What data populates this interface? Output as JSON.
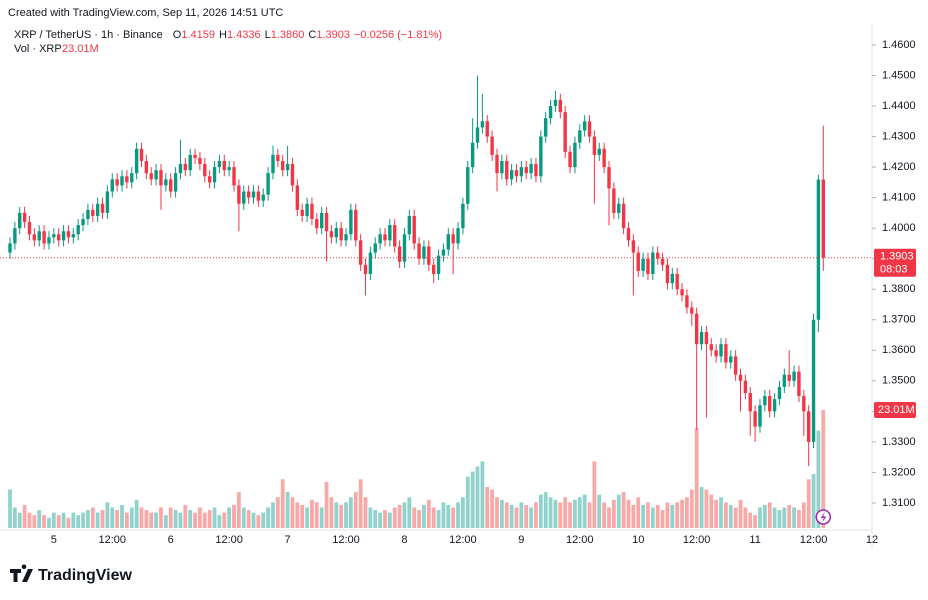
{
  "header": {
    "created": "Created with TradingView.com, Sep 11, 2026 14:51 UTC",
    "symbol": "XRP / TetherUS · 1h · Binance",
    "ohlc": [
      {
        "key": "O",
        "value": "1.4159"
      },
      {
        "key": "H",
        "value": "1.4336"
      },
      {
        "key": "L",
        "value": "1.3860"
      },
      {
        "key": "C",
        "value": "1.3903"
      }
    ],
    "change": "−0.0256 (−1.81%)",
    "volume_title": "Vol · XRP",
    "volume_value": "23.01M"
  },
  "chart_data": {
    "type": "candlestick",
    "up_color": "#089981",
    "down_color": "#f23645",
    "up_volume_color": "#92d2cc",
    "down_volume_color": "#f7a9a7",
    "ylim": [
      1.3018,
      1.4649
    ],
    "yticks": [
      {
        "value": 1.31,
        "label": "1.3100"
      },
      {
        "value": 1.32,
        "label": "1.3200"
      },
      {
        "value": 1.33,
        "label": "1.3300"
      },
      {
        "value": 1.34,
        "label": "1.3400"
      },
      {
        "value": 1.35,
        "label": "1.3500"
      },
      {
        "value": 1.36,
        "label": "1.3600"
      },
      {
        "value": 1.37,
        "label": "1.3700"
      },
      {
        "value": 1.38,
        "label": "1.3800"
      },
      {
        "value": 1.39,
        "label": "1.3900"
      },
      {
        "value": 1.4,
        "label": "1.4000"
      },
      {
        "value": 1.41,
        "label": "1.4100"
      },
      {
        "value": 1.42,
        "label": "1.4200"
      },
      {
        "value": 1.43,
        "label": "1.4300"
      },
      {
        "value": 1.44,
        "label": "1.4400"
      },
      {
        "value": 1.45,
        "label": "1.4500"
      },
      {
        "value": 1.46,
        "label": "1.4600"
      }
    ],
    "x_tick_labels": [
      "5",
      "12:00",
      "6",
      "12:00",
      "7",
      "12:00",
      "8",
      "12:00",
      "9",
      "12:00",
      "10",
      "12:00",
      "11",
      "12:00",
      "12"
    ],
    "last_price_label": "1.3903",
    "countdown": "08:03",
    "last_volume_label": "23.01M",
    "volume_ylim": [
      0,
      29.25
    ],
    "candles": [
      [
        1.392,
        1.397,
        1.39,
        1.395
      ],
      [
        1.395,
        1.402,
        1.393,
        1.4
      ],
      [
        1.4,
        1.407,
        1.398,
        1.405
      ],
      [
        1.405,
        1.407,
        1.4,
        1.402
      ],
      [
        1.402,
        1.404,
        1.396,
        1.398
      ],
      [
        1.398,
        1.4,
        1.394,
        1.396
      ],
      [
        1.396,
        1.401,
        1.394,
        1.399
      ],
      [
        1.399,
        1.401,
        1.393,
        1.395
      ],
      [
        1.395,
        1.399,
        1.393,
        1.397
      ],
      [
        1.397,
        1.4,
        1.395,
        1.398
      ],
      [
        1.398,
        1.4,
        1.394,
        1.396
      ],
      [
        1.396,
        1.401,
        1.394,
        1.399
      ],
      [
        1.399,
        1.401,
        1.395,
        1.397
      ],
      [
        1.397,
        1.4,
        1.395,
        1.398
      ],
      [
        1.398,
        1.403,
        1.396,
        1.401
      ],
      [
        1.401,
        1.405,
        1.399,
        1.403
      ],
      [
        1.403,
        1.408,
        1.401,
        1.406
      ],
      [
        1.406,
        1.408,
        1.402,
        1.404
      ],
      [
        1.404,
        1.41,
        1.402,
        1.408
      ],
      [
        1.408,
        1.41,
        1.403,
        1.405
      ],
      [
        1.405,
        1.414,
        1.403,
        1.412
      ],
      [
        1.412,
        1.418,
        1.41,
        1.416
      ],
      [
        1.416,
        1.418,
        1.412,
        1.414
      ],
      [
        1.414,
        1.419,
        1.412,
        1.417
      ],
      [
        1.417,
        1.419,
        1.413,
        1.415
      ],
      [
        1.415,
        1.42,
        1.413,
        1.418
      ],
      [
        1.418,
        1.428,
        1.416,
        1.426
      ],
      [
        1.426,
        1.428,
        1.42,
        1.422
      ],
      [
        1.422,
        1.424,
        1.416,
        1.418
      ],
      [
        1.418,
        1.42,
        1.414,
        1.416
      ],
      [
        1.416,
        1.421,
        1.414,
        1.419
      ],
      [
        1.419,
        1.421,
        1.406,
        1.414
      ],
      [
        1.414,
        1.418,
        1.412,
        1.416
      ],
      [
        1.416,
        1.418,
        1.41,
        1.412
      ],
      [
        1.412,
        1.42,
        1.41,
        1.418
      ],
      [
        1.418,
        1.429,
        1.416,
        1.421
      ],
      [
        1.421,
        1.423,
        1.417,
        1.419
      ],
      [
        1.419,
        1.426,
        1.417,
        1.424
      ],
      [
        1.424,
        1.426,
        1.421,
        1.423
      ],
      [
        1.423,
        1.425,
        1.419,
        1.421
      ],
      [
        1.421,
        1.423,
        1.415,
        1.417
      ],
      [
        1.417,
        1.419,
        1.413,
        1.415
      ],
      [
        1.415,
        1.422,
        1.413,
        1.42
      ],
      [
        1.42,
        1.424,
        1.418,
        1.422
      ],
      [
        1.422,
        1.424,
        1.417,
        1.419
      ],
      [
        1.419,
        1.422,
        1.417,
        1.42
      ],
      [
        1.42,
        1.422,
        1.412,
        1.414
      ],
      [
        1.414,
        1.416,
        1.399,
        1.408
      ],
      [
        1.408,
        1.414,
        1.406,
        1.412
      ],
      [
        1.412,
        1.414,
        1.408,
        1.41
      ],
      [
        1.41,
        1.414,
        1.408,
        1.412
      ],
      [
        1.412,
        1.414,
        1.407,
        1.409
      ],
      [
        1.409,
        1.413,
        1.407,
        1.411
      ],
      [
        1.411,
        1.42,
        1.409,
        1.418
      ],
      [
        1.418,
        1.427,
        1.416,
        1.424
      ],
      [
        1.424,
        1.426,
        1.42,
        1.422
      ],
      [
        1.422,
        1.424,
        1.417,
        1.419
      ],
      [
        1.419,
        1.427,
        1.417,
        1.421
      ],
      [
        1.421,
        1.423,
        1.412,
        1.414
      ],
      [
        1.414,
        1.416,
        1.404,
        1.406
      ],
      [
        1.406,
        1.408,
        1.402,
        1.404
      ],
      [
        1.404,
        1.41,
        1.402,
        1.408
      ],
      [
        1.408,
        1.41,
        1.401,
        1.403
      ],
      [
        1.403,
        1.405,
        1.398,
        1.4
      ],
      [
        1.4,
        1.407,
        1.398,
        1.405
      ],
      [
        1.405,
        1.407,
        1.389,
        1.399
      ],
      [
        1.399,
        1.401,
        1.395,
        1.397
      ],
      [
        1.397,
        1.402,
        1.395,
        1.4
      ],
      [
        1.4,
        1.402,
        1.394,
        1.396
      ],
      [
        1.396,
        1.4,
        1.394,
        1.398
      ],
      [
        1.398,
        1.408,
        1.396,
        1.406
      ],
      [
        1.406,
        1.408,
        1.394,
        1.396
      ],
      [
        1.396,
        1.398,
        1.386,
        1.388
      ],
      [
        1.388,
        1.39,
        1.378,
        1.385
      ],
      [
        1.385,
        1.394,
        1.383,
        1.392
      ],
      [
        1.392,
        1.397,
        1.39,
        1.395
      ],
      [
        1.395,
        1.4,
        1.393,
        1.398
      ],
      [
        1.398,
        1.4,
        1.394,
        1.396
      ],
      [
        1.396,
        1.403,
        1.394,
        1.401
      ],
      [
        1.401,
        1.403,
        1.392,
        1.394
      ],
      [
        1.394,
        1.396,
        1.387,
        1.389
      ],
      [
        1.389,
        1.4,
        1.387,
        1.398
      ],
      [
        1.398,
        1.406,
        1.396,
        1.404
      ],
      [
        1.404,
        1.406,
        1.393,
        1.395
      ],
      [
        1.395,
        1.397,
        1.388,
        1.39
      ],
      [
        1.39,
        1.396,
        1.388,
        1.394
      ],
      [
        1.394,
        1.396,
        1.386,
        1.388
      ],
      [
        1.388,
        1.39,
        1.382,
        1.385
      ],
      [
        1.385,
        1.393,
        1.383,
        1.391
      ],
      [
        1.391,
        1.395,
        1.389,
        1.393
      ],
      [
        1.393,
        1.4,
        1.391,
        1.398
      ],
      [
        1.398,
        1.4,
        1.385,
        1.395
      ],
      [
        1.395,
        1.402,
        1.393,
        1.4
      ],
      [
        1.4,
        1.41,
        1.398,
        1.408
      ],
      [
        1.408,
        1.422,
        1.406,
        1.42
      ],
      [
        1.42,
        1.436,
        1.418,
        1.428
      ],
      [
        1.428,
        1.45,
        1.426,
        1.433
      ],
      [
        1.433,
        1.444,
        1.431,
        1.435
      ],
      [
        1.435,
        1.437,
        1.428,
        1.43
      ],
      [
        1.43,
        1.432,
        1.422,
        1.424
      ],
      [
        1.424,
        1.426,
        1.412,
        1.418
      ],
      [
        1.418,
        1.424,
        1.416,
        1.422
      ],
      [
        1.422,
        1.424,
        1.414,
        1.416
      ],
      [
        1.416,
        1.421,
        1.414,
        1.419
      ],
      [
        1.419,
        1.421,
        1.415,
        1.417
      ],
      [
        1.417,
        1.422,
        1.415,
        1.42
      ],
      [
        1.42,
        1.422,
        1.416,
        1.418
      ],
      [
        1.418,
        1.423,
        1.416,
        1.421
      ],
      [
        1.421,
        1.423,
        1.415,
        1.417
      ],
      [
        1.417,
        1.432,
        1.415,
        1.43
      ],
      [
        1.43,
        1.438,
        1.428,
        1.436
      ],
      [
        1.436,
        1.442,
        1.434,
        1.44
      ],
      [
        1.44,
        1.445,
        1.438,
        1.442
      ],
      [
        1.442,
        1.444,
        1.436,
        1.438
      ],
      [
        1.438,
        1.44,
        1.423,
        1.425
      ],
      [
        1.425,
        1.427,
        1.418,
        1.42
      ],
      [
        1.42,
        1.43,
        1.418,
        1.428
      ],
      [
        1.428,
        1.434,
        1.426,
        1.432
      ],
      [
        1.432,
        1.437,
        1.43,
        1.435
      ],
      [
        1.435,
        1.437,
        1.428,
        1.43
      ],
      [
        1.43,
        1.432,
        1.408,
        1.424
      ],
      [
        1.424,
        1.428,
        1.422,
        1.426
      ],
      [
        1.426,
        1.428,
        1.418,
        1.42
      ],
      [
        1.42,
        1.422,
        1.401,
        1.413
      ],
      [
        1.413,
        1.415,
        1.403,
        1.405
      ],
      [
        1.405,
        1.41,
        1.403,
        1.408
      ],
      [
        1.408,
        1.41,
        1.398,
        1.4
      ],
      [
        1.4,
        1.402,
        1.394,
        1.396
      ],
      [
        1.396,
        1.398,
        1.378,
        1.392
      ],
      [
        1.392,
        1.394,
        1.384,
        1.386
      ],
      [
        1.386,
        1.392,
        1.384,
        1.39
      ],
      [
        1.39,
        1.392,
        1.383,
        1.385
      ],
      [
        1.385,
        1.394,
        1.383,
        1.392
      ],
      [
        1.392,
        1.394,
        1.388,
        1.39
      ],
      [
        1.39,
        1.392,
        1.386,
        1.388
      ],
      [
        1.388,
        1.39,
        1.38,
        1.382
      ],
      [
        1.382,
        1.387,
        1.38,
        1.385
      ],
      [
        1.385,
        1.387,
        1.378,
        1.38
      ],
      [
        1.38,
        1.382,
        1.376,
        1.378
      ],
      [
        1.378,
        1.38,
        1.372,
        1.374
      ],
      [
        1.374,
        1.376,
        1.368,
        1.372
      ],
      [
        1.372,
        1.374,
        1.334,
        1.362
      ],
      [
        1.362,
        1.368,
        1.36,
        1.366
      ],
      [
        1.366,
        1.368,
        1.338,
        1.362
      ],
      [
        1.362,
        1.364,
        1.358,
        1.36
      ],
      [
        1.36,
        1.362,
        1.356,
        1.358
      ],
      [
        1.358,
        1.364,
        1.356,
        1.362
      ],
      [
        1.362,
        1.364,
        1.354,
        1.356
      ],
      [
        1.356,
        1.36,
        1.354,
        1.358
      ],
      [
        1.358,
        1.36,
        1.35,
        1.352
      ],
      [
        1.352,
        1.354,
        1.34,
        1.35
      ],
      [
        1.35,
        1.352,
        1.344,
        1.346
      ],
      [
        1.346,
        1.348,
        1.332,
        1.34
      ],
      [
        1.34,
        1.342,
        1.33,
        1.335
      ],
      [
        1.335,
        1.344,
        1.333,
        1.342
      ],
      [
        1.342,
        1.347,
        1.34,
        1.345
      ],
      [
        1.345,
        1.347,
        1.338,
        1.34
      ],
      [
        1.34,
        1.346,
        1.338,
        1.344
      ],
      [
        1.344,
        1.35,
        1.342,
        1.348
      ],
      [
        1.348,
        1.354,
        1.346,
        1.352
      ],
      [
        1.352,
        1.36,
        1.348,
        1.35
      ],
      [
        1.35,
        1.355,
        1.348,
        1.353
      ],
      [
        1.353,
        1.355,
        1.343,
        1.345
      ],
      [
        1.345,
        1.347,
        1.332,
        1.34
      ],
      [
        1.34,
        1.342,
        1.322,
        1.33
      ],
      [
        1.33,
        1.372,
        1.328,
        1.37
      ],
      [
        1.37,
        1.4175,
        1.366,
        1.4159
      ],
      [
        1.4159,
        1.4336,
        1.386,
        1.3903
      ]
    ],
    "volume": [
      7.5,
      4,
      3,
      4.5,
      3,
      2.5,
      3.5,
      2.5,
      2,
      3,
      2.5,
      3,
      2,
      3,
      2.5,
      3,
      3.5,
      4,
      3,
      3.5,
      5,
      4,
      3.5,
      4.5,
      3,
      4,
      5.5,
      4,
      3.5,
      3,
      3,
      4,
      2.5,
      4,
      3.5,
      3,
      4.5,
      3.5,
      3,
      4,
      3,
      3.5,
      4,
      2.5,
      3,
      4,
      4.5,
      7,
      4,
      3.5,
      3,
      2.5,
      3,
      4,
      5,
      6,
      9.5,
      7,
      6,
      5,
      4.5,
      4,
      5.5,
      5,
      4,
      9,
      6,
      5,
      4.5,
      5,
      6,
      7,
      9.5,
      6,
      4,
      3.5,
      3,
      3.5,
      3,
      4,
      4.5,
      5,
      6,
      4,
      3.5,
      4.5,
      5.5,
      4,
      3.5,
      5,
      4.5,
      4,
      5,
      6,
      10,
      11,
      12,
      13,
      8,
      7.5,
      6,
      5.5,
      5,
      4.5,
      4,
      5,
      4.5,
      4,
      5,
      6.5,
      7,
      6,
      5.5,
      5,
      6,
      5,
      5.5,
      6,
      6.5,
      5,
      13,
      6.5,
      5,
      4,
      5.5,
      6.5,
      7,
      5.5,
      4.5,
      6,
      4.5,
      5,
      4,
      4.5,
      3.5,
      5,
      4.5,
      5,
      5.5,
      6,
      7.5,
      19.5,
      8,
      7.5,
      6.5,
      5.5,
      6,
      5,
      4.5,
      4,
      5.5,
      4,
      3,
      2.5,
      4,
      4.5,
      5,
      4,
      3.5,
      4,
      4.5,
      4,
      3.5,
      5,
      9.5,
      10.5,
      19,
      23.01
    ]
  },
  "footer": {
    "brand": "TradingView"
  }
}
